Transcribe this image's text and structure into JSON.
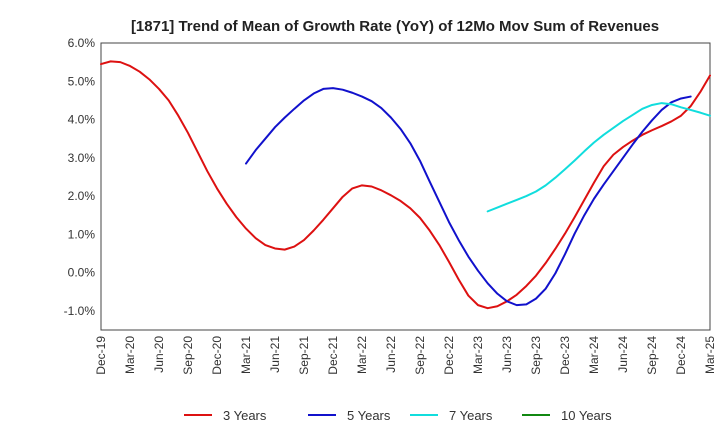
{
  "chart_data": {
    "type": "line",
    "title": "[1871]  Trend of Mean of Growth Rate (YoY) of 12Mo Mov Sum of Revenues",
    "xlabel": "",
    "ylabel": "",
    "ylim": [
      -1.5,
      6.0
    ],
    "y_ticks": [
      -1.0,
      0.0,
      1.0,
      2.0,
      3.0,
      4.0,
      5.0,
      6.0
    ],
    "y_tick_labels": [
      "-1.0%",
      "0.0%",
      "1.0%",
      "2.0%",
      "3.0%",
      "4.0%",
      "5.0%",
      "6.0%"
    ],
    "x_tick_labels": [
      "Dec-19",
      "Mar-20",
      "Jun-20",
      "Sep-20",
      "Dec-20",
      "Mar-21",
      "Jun-21",
      "Sep-21",
      "Dec-21",
      "Mar-22",
      "Jun-22",
      "Sep-22",
      "Dec-22",
      "Mar-23",
      "Jun-23",
      "Sep-23",
      "Dec-23",
      "Mar-24",
      "Jun-24",
      "Sep-24",
      "Dec-24",
      "Mar-25"
    ],
    "x_count": 64,
    "grid": true,
    "legend_position": "bottom",
    "series": [
      {
        "name": "3 Years",
        "color": "#dd1111",
        "start_index": 0,
        "values": [
          5.45,
          5.52,
          5.5,
          5.4,
          5.25,
          5.05,
          4.8,
          4.5,
          4.1,
          3.65,
          3.15,
          2.65,
          2.2,
          1.8,
          1.45,
          1.15,
          0.9,
          0.72,
          0.63,
          0.6,
          0.68,
          0.85,
          1.1,
          1.38,
          1.68,
          1.98,
          2.2,
          2.28,
          2.25,
          2.15,
          2.02,
          1.87,
          1.68,
          1.43,
          1.1,
          0.72,
          0.28,
          -0.18,
          -0.6,
          -0.85,
          -0.93,
          -0.88,
          -0.75,
          -0.58,
          -0.35,
          -0.08,
          0.25,
          0.62,
          1.02,
          1.45,
          1.9,
          2.35,
          2.78,
          3.08,
          3.28,
          3.45,
          3.6,
          3.72,
          3.83,
          3.95,
          4.1,
          4.35,
          4.72,
          5.15
        ]
      },
      {
        "name": "5 Years",
        "color": "#1111cc",
        "start_index": 15,
        "values": [
          2.85,
          3.2,
          3.5,
          3.8,
          4.05,
          4.28,
          4.5,
          4.68,
          4.8,
          4.82,
          4.78,
          4.7,
          4.6,
          4.48,
          4.3,
          4.05,
          3.75,
          3.38,
          2.92,
          2.38,
          1.85,
          1.32,
          0.85,
          0.42,
          0.05,
          -0.28,
          -0.55,
          -0.75,
          -0.85,
          -0.83,
          -0.68,
          -0.42,
          -0.02,
          0.48,
          1.02,
          1.5,
          1.93,
          2.3,
          2.65,
          3.0,
          3.35,
          3.68,
          3.98,
          4.25,
          4.45,
          4.55,
          4.6
        ]
      },
      {
        "name": "7 Years",
        "color": "#11dddd",
        "start_index": 40,
        "values": [
          1.6,
          1.7,
          1.8,
          1.9,
          2.0,
          2.12,
          2.28,
          2.48,
          2.7,
          2.93,
          3.17,
          3.4,
          3.6,
          3.78,
          3.96,
          4.12,
          4.28,
          4.38,
          4.43,
          4.4,
          4.32,
          4.25,
          4.18,
          4.1
        ]
      },
      {
        "name": "10 Years",
        "color": "#118811",
        "start_index": 0,
        "values": []
      }
    ]
  }
}
